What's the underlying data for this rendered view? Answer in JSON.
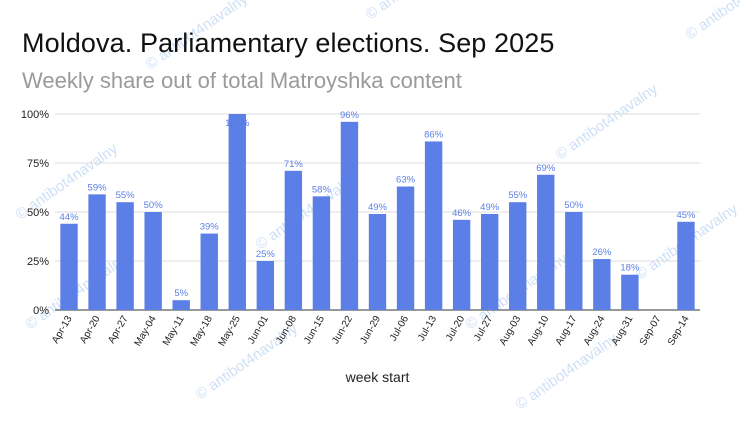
{
  "watermark": "© antibot4navalny",
  "chart_data": {
    "type": "bar",
    "title": "Moldova. Parliamentary elections. Sep 2025",
    "subtitle": "Weekly share out of total Matroyshka content",
    "xlabel": "week start",
    "ylabel": "",
    "ylim": [
      0,
      100
    ],
    "yticks": [
      0,
      25,
      50,
      75,
      100
    ],
    "ytick_labels": [
      "0%",
      "25%",
      "50%",
      "75%",
      "100%"
    ],
    "grid": true,
    "legend": "none",
    "bar_color": "#5b7fe6",
    "label_color": "#5b7fe6",
    "categories": [
      "Apr-13",
      "Apr-20",
      "Apr-27",
      "May-04",
      "May-11",
      "May-18",
      "May-25",
      "Jun-01",
      "Jun-08",
      "Jun-15",
      "Jun-22",
      "Jun-29",
      "Jul-06",
      "Jul-13",
      "Jul-20",
      "Jul-27",
      "Aug-03",
      "Aug-10",
      "Aug-17",
      "Aug-24",
      "Aug-31",
      "Sep-07",
      "Sep-14"
    ],
    "values": [
      44,
      59,
      55,
      50,
      5,
      39,
      100,
      25,
      71,
      58,
      96,
      49,
      63,
      86,
      46,
      49,
      55,
      69,
      50,
      26,
      18,
      null,
      45
    ],
    "data_labels": [
      "44%",
      "59%",
      "55%",
      "50%",
      "5%",
      "39%",
      "100%",
      "25%",
      "71%",
      "58%",
      "96%",
      "49%",
      "63%",
      "86%",
      "46%",
      "49%",
      "55%",
      "69%",
      "50%",
      "26%",
      "18%",
      "",
      "45%"
    ]
  }
}
